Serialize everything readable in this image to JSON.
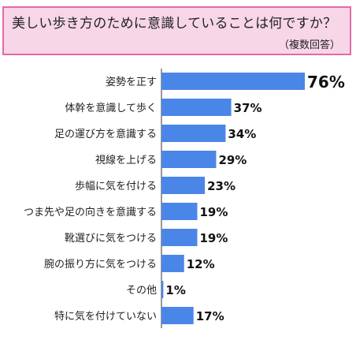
{
  "header": {
    "title": "美しい歩き方のために意識していることは何ですか？",
    "note": "（複数回答）"
  },
  "colors": {
    "bar": "#4a86e8",
    "header_bg": "#f7d6e8",
    "header_border": "#e46aa8",
    "axis": "#333333"
  },
  "chart_data": {
    "type": "bar",
    "orientation": "horizontal",
    "title": "美しい歩き方のために意識していることは何ですか？",
    "subtitle": "（複数回答）",
    "categories": [
      "姿勢を正す",
      "体幹を意識して歩く",
      "足の運び方を意識する",
      "視線を上げる",
      "歩幅に気を付ける",
      "つま先や足の向きを意識する",
      "靴選びに気をつける",
      "腕の振り方に気をつける",
      "その他",
      "特に気を付けていない"
    ],
    "values": [
      76,
      37,
      34,
      29,
      23,
      19,
      19,
      12,
      1,
      17
    ],
    "value_labels": [
      "76%",
      "37%",
      "34%",
      "29%",
      "23%",
      "19%",
      "19%",
      "12%",
      "1%",
      "17%"
    ],
    "unit": "%",
    "xlim": [
      0,
      76
    ],
    "grid": false,
    "legend": "none"
  }
}
